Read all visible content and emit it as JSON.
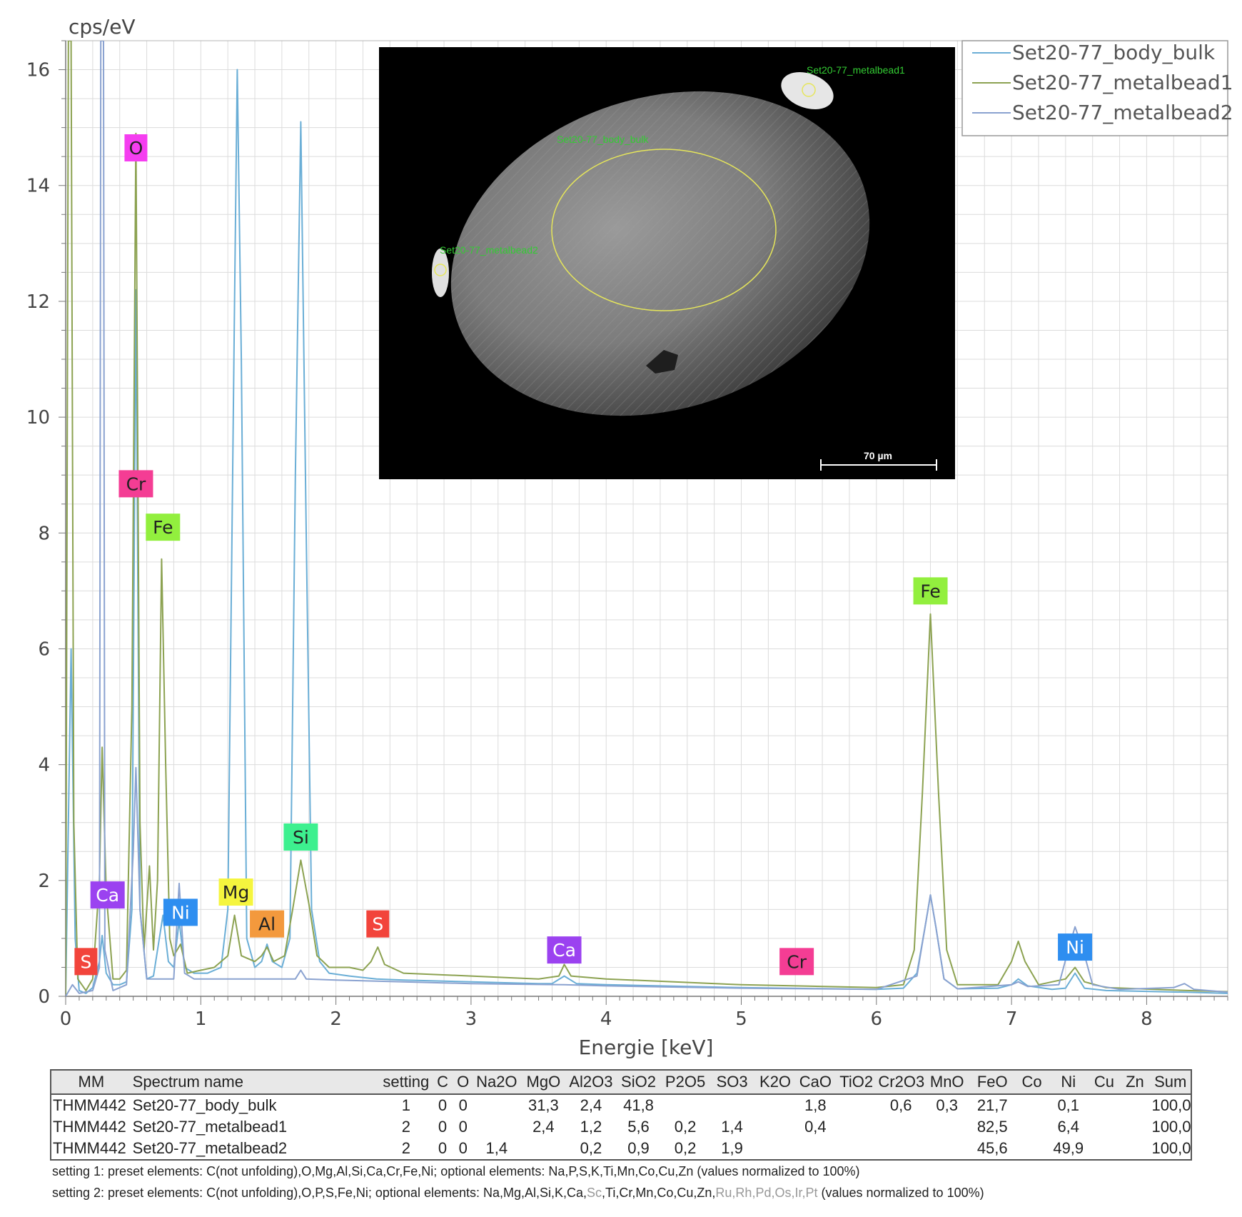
{
  "chart_data": {
    "type": "line",
    "ylabel": "cps/eV",
    "xlabel": "Energie [keV]",
    "xlim": [
      0,
      8.6
    ],
    "ylim": [
      0,
      16.5
    ],
    "xticks": [
      0,
      1,
      2,
      3,
      4,
      5,
      6,
      7,
      8
    ],
    "yticks": [
      0,
      2,
      4,
      6,
      8,
      10,
      12,
      14,
      16
    ],
    "grid": true,
    "legend_position": "top-right",
    "series": [
      {
        "name": "Set20-77_body_bulk",
        "color": "#6aaed6",
        "points": [
          [
            0.0,
            0.0
          ],
          [
            0.04,
            6.0
          ],
          [
            0.07,
            1.0
          ],
          [
            0.1,
            0.1
          ],
          [
            0.15,
            0.05
          ],
          [
            0.2,
            0.15
          ],
          [
            0.25,
            0.6
          ],
          [
            0.27,
            1.05
          ],
          [
            0.3,
            0.4
          ],
          [
            0.35,
            0.2
          ],
          [
            0.4,
            0.2
          ],
          [
            0.45,
            0.25
          ],
          [
            0.49,
            1.5
          ],
          [
            0.52,
            12.2
          ],
          [
            0.55,
            1.5
          ],
          [
            0.6,
            0.3
          ],
          [
            0.65,
            0.35
          ],
          [
            0.68,
            0.8
          ],
          [
            0.72,
            1.4
          ],
          [
            0.76,
            0.6
          ],
          [
            0.8,
            0.5
          ],
          [
            0.84,
            1.3
          ],
          [
            0.88,
            0.5
          ],
          [
            0.95,
            0.4
          ],
          [
            1.05,
            0.4
          ],
          [
            1.15,
            0.5
          ],
          [
            1.2,
            1.5
          ],
          [
            1.25,
            12.0
          ],
          [
            1.27,
            16.0
          ],
          [
            1.3,
            11.0
          ],
          [
            1.34,
            1.0
          ],
          [
            1.4,
            0.5
          ],
          [
            1.45,
            0.6
          ],
          [
            1.49,
            0.9
          ],
          [
            1.53,
            0.6
          ],
          [
            1.6,
            0.5
          ],
          [
            1.66,
            1.0
          ],
          [
            1.7,
            9.0
          ],
          [
            1.74,
            15.1
          ],
          [
            1.78,
            8.0
          ],
          [
            1.82,
            1.5
          ],
          [
            1.88,
            0.6
          ],
          [
            1.95,
            0.4
          ],
          [
            2.1,
            0.35
          ],
          [
            2.3,
            0.3
          ],
          [
            2.5,
            0.28
          ],
          [
            3.0,
            0.25
          ],
          [
            3.5,
            0.22
          ],
          [
            3.6,
            0.22
          ],
          [
            3.69,
            0.35
          ],
          [
            3.78,
            0.22
          ],
          [
            4.0,
            0.2
          ],
          [
            5.0,
            0.15
          ],
          [
            6.0,
            0.12
          ],
          [
            6.2,
            0.14
          ],
          [
            6.3,
            0.4
          ],
          [
            6.36,
            1.2
          ],
          [
            6.4,
            1.75
          ],
          [
            6.44,
            1.2
          ],
          [
            6.5,
            0.3
          ],
          [
            6.6,
            0.13
          ],
          [
            6.9,
            0.14
          ],
          [
            7.0,
            0.2
          ],
          [
            7.05,
            0.3
          ],
          [
            7.12,
            0.18
          ],
          [
            7.3,
            0.12
          ],
          [
            7.4,
            0.14
          ],
          [
            7.47,
            0.4
          ],
          [
            7.54,
            0.14
          ],
          [
            7.7,
            0.1
          ],
          [
            8.3,
            0.07
          ],
          [
            8.6,
            0.05
          ]
        ]
      },
      {
        "name": "Set20-77_metalbead1",
        "color": "#8ca251",
        "points": [
          [
            0.0,
            0.0
          ],
          [
            0.02,
            16.5
          ],
          [
            0.04,
            16.5
          ],
          [
            0.06,
            3.0
          ],
          [
            0.09,
            0.3
          ],
          [
            0.15,
            0.1
          ],
          [
            0.2,
            0.3
          ],
          [
            0.25,
            2.0
          ],
          [
            0.27,
            4.3
          ],
          [
            0.3,
            1.8
          ],
          [
            0.35,
            0.3
          ],
          [
            0.4,
            0.3
          ],
          [
            0.45,
            0.45
          ],
          [
            0.49,
            5.0
          ],
          [
            0.52,
            14.9
          ],
          [
            0.55,
            3.0
          ],
          [
            0.58,
            0.8
          ],
          [
            0.62,
            2.25
          ],
          [
            0.65,
            0.8
          ],
          [
            0.68,
            2.0
          ],
          [
            0.71,
            7.55
          ],
          [
            0.74,
            4.0
          ],
          [
            0.77,
            1.0
          ],
          [
            0.8,
            0.7
          ],
          [
            0.85,
            0.9
          ],
          [
            0.9,
            0.4
          ],
          [
            1.0,
            0.45
          ],
          [
            1.1,
            0.5
          ],
          [
            1.2,
            0.7
          ],
          [
            1.25,
            1.4
          ],
          [
            1.3,
            0.7
          ],
          [
            1.4,
            0.6
          ],
          [
            1.45,
            0.7
          ],
          [
            1.49,
            0.85
          ],
          [
            1.54,
            0.6
          ],
          [
            1.62,
            0.7
          ],
          [
            1.68,
            1.5
          ],
          [
            1.74,
            2.35
          ],
          [
            1.8,
            1.6
          ],
          [
            1.86,
            0.7
          ],
          [
            1.95,
            0.5
          ],
          [
            2.1,
            0.5
          ],
          [
            2.2,
            0.45
          ],
          [
            2.26,
            0.6
          ],
          [
            2.31,
            0.85
          ],
          [
            2.36,
            0.55
          ],
          [
            2.5,
            0.4
          ],
          [
            3.0,
            0.35
          ],
          [
            3.5,
            0.3
          ],
          [
            3.65,
            0.35
          ],
          [
            3.69,
            0.55
          ],
          [
            3.74,
            0.35
          ],
          [
            4.0,
            0.3
          ],
          [
            5.0,
            0.2
          ],
          [
            6.0,
            0.15
          ],
          [
            6.2,
            0.2
          ],
          [
            6.28,
            0.8
          ],
          [
            6.34,
            3.5
          ],
          [
            6.4,
            6.6
          ],
          [
            6.46,
            3.5
          ],
          [
            6.52,
            0.8
          ],
          [
            6.6,
            0.2
          ],
          [
            6.9,
            0.2
          ],
          [
            7.0,
            0.6
          ],
          [
            7.05,
            0.95
          ],
          [
            7.1,
            0.6
          ],
          [
            7.2,
            0.2
          ],
          [
            7.4,
            0.3
          ],
          [
            7.47,
            0.5
          ],
          [
            7.54,
            0.25
          ],
          [
            7.7,
            0.15
          ],
          [
            8.3,
            0.1
          ],
          [
            8.6,
            0.08
          ]
        ]
      },
      {
        "name": "Set20-77_metalbead2",
        "color": "#8aa2d0",
        "points": [
          [
            0.0,
            0.0
          ],
          [
            0.05,
            0.2
          ],
          [
            0.1,
            0.05
          ],
          [
            0.2,
            0.1
          ],
          [
            0.25,
            0.5
          ],
          [
            0.26,
            16.5
          ],
          [
            0.28,
            16.5
          ],
          [
            0.29,
            0.8
          ],
          [
            0.35,
            0.1
          ],
          [
            0.45,
            0.2
          ],
          [
            0.5,
            2.5
          ],
          [
            0.52,
            3.95
          ],
          [
            0.55,
            1.5
          ],
          [
            0.6,
            0.3
          ],
          [
            0.7,
            0.3
          ],
          [
            0.8,
            0.3
          ],
          [
            0.84,
            1.95
          ],
          [
            0.88,
            0.4
          ],
          [
            0.95,
            0.3
          ],
          [
            1.3,
            0.3
          ],
          [
            1.6,
            0.3
          ],
          [
            1.7,
            0.3
          ],
          [
            1.74,
            0.45
          ],
          [
            1.78,
            0.3
          ],
          [
            2.0,
            0.28
          ],
          [
            2.5,
            0.25
          ],
          [
            3.0,
            0.22
          ],
          [
            3.69,
            0.2
          ],
          [
            4.0,
            0.18
          ],
          [
            5.0,
            0.14
          ],
          [
            6.0,
            0.12
          ],
          [
            6.3,
            0.35
          ],
          [
            6.36,
            1.2
          ],
          [
            6.4,
            1.75
          ],
          [
            6.44,
            1.2
          ],
          [
            6.5,
            0.3
          ],
          [
            6.6,
            0.13
          ],
          [
            7.0,
            0.2
          ],
          [
            7.05,
            0.25
          ],
          [
            7.12,
            0.17
          ],
          [
            7.35,
            0.2
          ],
          [
            7.42,
            0.8
          ],
          [
            7.47,
            1.2
          ],
          [
            7.53,
            0.8
          ],
          [
            7.6,
            0.2
          ],
          [
            7.8,
            0.12
          ],
          [
            8.2,
            0.15
          ],
          [
            8.28,
            0.22
          ],
          [
            8.35,
            0.12
          ],
          [
            8.6,
            0.07
          ]
        ]
      }
    ],
    "element_labels": [
      {
        "text": "S",
        "x": 0.15,
        "y": 0.6,
        "color": "#f2443b",
        "text_color": "#ffffff"
      },
      {
        "text": "Ca",
        "x": 0.31,
        "y": 1.75,
        "color": "#9b42f0",
        "text_color": "#ffffff"
      },
      {
        "text": "O",
        "x": 0.52,
        "y": 14.65,
        "color": "#f53ef0",
        "text_color": "#222222"
      },
      {
        "text": "Cr",
        "x": 0.52,
        "y": 8.85,
        "color": "#f43d94",
        "text_color": "#222222"
      },
      {
        "text": "Fe",
        "x": 0.72,
        "y": 8.1,
        "color": "#92ef3e",
        "text_color": "#222222"
      },
      {
        "text": "Ni",
        "x": 0.85,
        "y": 1.45,
        "color": "#2e8ef0",
        "text_color": "#ffffff"
      },
      {
        "text": "Mg",
        "x": 1.26,
        "y": 1.8,
        "color": "#f5f53e",
        "text_color": "#222222"
      },
      {
        "text": "Al",
        "x": 1.49,
        "y": 1.25,
        "color": "#f3993d",
        "text_color": "#222222"
      },
      {
        "text": "Si",
        "x": 1.74,
        "y": 2.75,
        "color": "#3df08f",
        "text_color": "#222222"
      },
      {
        "text": "S",
        "x": 2.31,
        "y": 1.25,
        "color": "#f2443b",
        "text_color": "#ffffff"
      },
      {
        "text": "Ca",
        "x": 3.69,
        "y": 0.8,
        "color": "#9b42f0",
        "text_color": "#ffffff"
      },
      {
        "text": "Cr",
        "x": 5.41,
        "y": 0.6,
        "color": "#f43d94",
        "text_color": "#222222"
      },
      {
        "text": "Fe",
        "x": 6.4,
        "y": 7.0,
        "color": "#92ef3e",
        "text_color": "#222222"
      },
      {
        "text": "Ni",
        "x": 7.47,
        "y": 0.85,
        "color": "#2e8ef0",
        "text_color": "#ffffff"
      }
    ]
  },
  "sem_image": {
    "labels": {
      "bead1": "Set20-77_metalbead1",
      "bulk": "Set20-77_body_bulk",
      "bead2": "Set20-77_metalbead2"
    },
    "scale_bar": "70 µm",
    "colors": {
      "label": "#33cc33",
      "roi": "#e6e65a"
    }
  },
  "table": {
    "headers": [
      "MM",
      "Spectrum name",
      "setting",
      "C",
      "O",
      "Na2O",
      "MgO",
      "Al2O3",
      "SiO2",
      "P2O5",
      "SO3",
      "K2O",
      "CaO",
      "TiO2",
      "Cr2O3",
      "MnO",
      "FeO",
      "Co",
      "Ni",
      "Cu",
      "Zn",
      "Sum"
    ],
    "rows": [
      [
        "THMM442",
        "Set20-77_body_bulk",
        "1",
        "0",
        "0",
        "",
        "31,3",
        "2,4",
        "41,8",
        "",
        "",
        "",
        "1,8",
        "",
        "0,6",
        "0,3",
        "21,7",
        "",
        "0,1",
        "",
        "",
        "100,0"
      ],
      [
        "THMM442",
        "Set20-77_metalbead1",
        "2",
        "0",
        "0",
        "",
        "2,4",
        "1,2",
        "5,6",
        "0,2",
        "1,4",
        "",
        "0,4",
        "",
        "",
        "",
        "82,5",
        "",
        "6,4",
        "",
        "",
        "100,0"
      ],
      [
        "THMM442",
        "Set20-77_metalbead2",
        "2",
        "0",
        "0",
        "1,4",
        "",
        "0,2",
        "0,9",
        "0,2",
        "1,9",
        "",
        "",
        "",
        "",
        "",
        "45,6",
        "",
        "49,9",
        "",
        "",
        "100,0"
      ]
    ]
  },
  "notes": {
    "setting1": "setting 1: preset elements: C(not unfolding),O,Mg,Al,Si,Ca,Cr,Fe,Ni; optional elements: Na,P,S,K,Ti,Mn,Co,Cu,Zn (values normalized to 100%)",
    "setting2_a": "setting 2: preset elements: C(not unfolding),O,P,S,Fe,Ni; optional elements: Na,Mg,Al,Si,K,Ca,",
    "setting2_sc": "Sc",
    "setting2_b": ",Ti,Cr,Mn,Co,Cu,Zn,",
    "setting2_grey": "Ru,Rh,Pd,Os,Ir,Pt",
    "setting2_c": " (values normalized to 100%)"
  }
}
